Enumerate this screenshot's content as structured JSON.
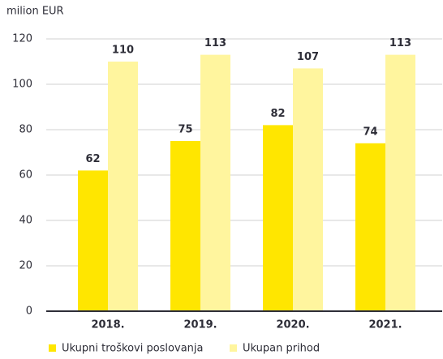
{
  "chart_data": {
    "type": "bar",
    "y_label": "milion EUR",
    "categories": [
      "2018.",
      "2019.",
      "2020.",
      "2021."
    ],
    "series": [
      {
        "name": "Ukupni troškovi poslovanja",
        "color": "#ffe600",
        "values": [
          62,
          75,
          82,
          74
        ]
      },
      {
        "name": "Ukupan prihod",
        "color": "#fff59e",
        "values": [
          110,
          113,
          107,
          113
        ]
      }
    ],
    "ylim": [
      0,
      120
    ],
    "yticks": [
      0,
      20,
      40,
      60,
      80,
      100,
      120
    ],
    "grid": true,
    "legend": "bottom"
  }
}
